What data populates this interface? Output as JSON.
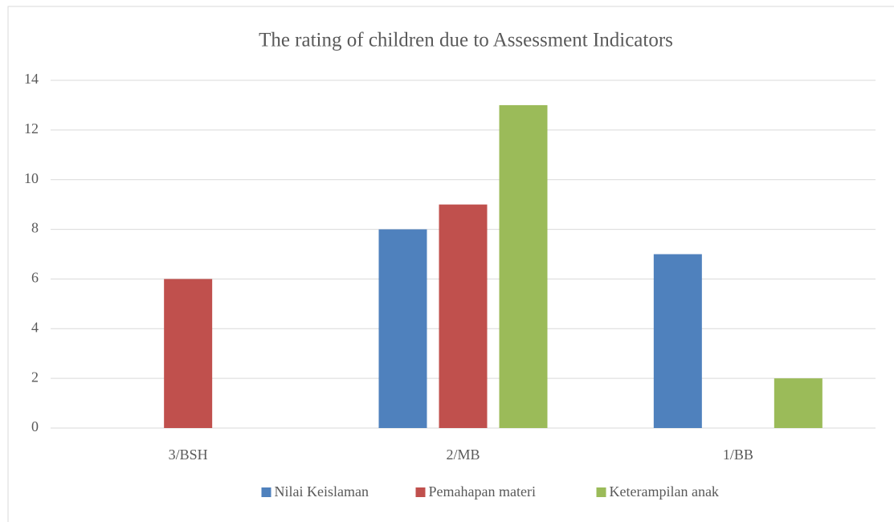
{
  "chart_data": {
    "type": "bar",
    "title": "The rating of children due to Assessment Indicators",
    "categories": [
      "3/BSH",
      "2/MB",
      "1/BB"
    ],
    "series": [
      {
        "name": "Nilai Keislaman",
        "color": "#4f81bd",
        "values": [
          0,
          8,
          7
        ]
      },
      {
        "name": "Pemahapan materi",
        "color": "#c0504d",
        "values": [
          6,
          9,
          0
        ]
      },
      {
        "name": "Keterampilan anak",
        "color": "#9bbb59",
        "values": [
          0,
          13,
          2
        ]
      }
    ],
    "ylim": [
      0,
      14
    ],
    "yticks": [
      0,
      2,
      4,
      6,
      8,
      10,
      12,
      14
    ],
    "grid": true,
    "legend": "bottom"
  }
}
